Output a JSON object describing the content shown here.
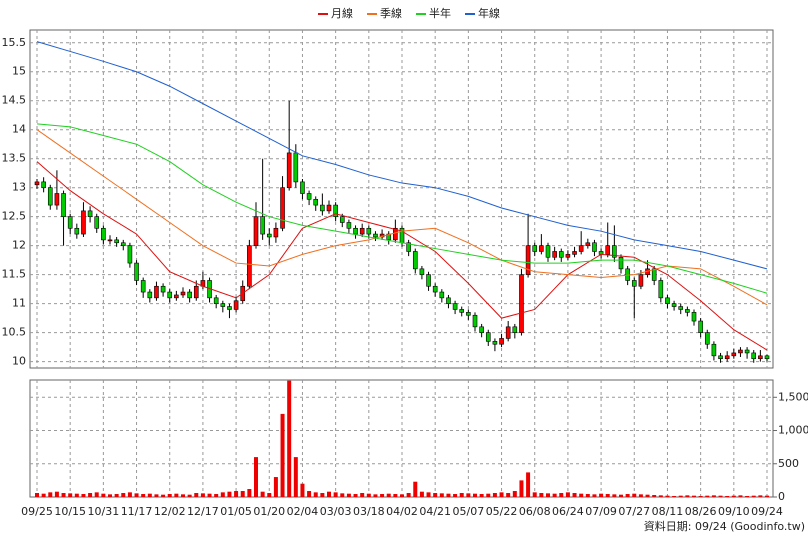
{
  "chart_data": {
    "type": "candlestick",
    "legend": "top",
    "grid": true,
    "footnote": "資料日期: 09/24 (Goodinfo.tw)",
    "up_color": "#ff0000",
    "down_color": "#00cc00",
    "categories": [
      "09/25",
      null,
      null,
      null,
      null,
      "10/15",
      null,
      null,
      null,
      null,
      "10/31",
      null,
      null,
      null,
      null,
      "11/17",
      null,
      null,
      null,
      null,
      "12/02",
      null,
      null,
      null,
      null,
      "12/17",
      null,
      null,
      null,
      null,
      "01/05",
      null,
      null,
      null,
      null,
      "01/20",
      null,
      null,
      null,
      null,
      "02/04",
      null,
      null,
      null,
      null,
      "03/03",
      null,
      null,
      null,
      null,
      "03/18",
      null,
      null,
      null,
      null,
      "04/02",
      null,
      null,
      null,
      null,
      "04/21",
      null,
      null,
      null,
      null,
      "05/07",
      null,
      null,
      null,
      null,
      "05/22",
      null,
      null,
      null,
      null,
      "06/08",
      null,
      null,
      null,
      null,
      "06/24",
      null,
      null,
      null,
      null,
      "07/09",
      null,
      null,
      null,
      null,
      "07/27",
      null,
      null,
      null,
      null,
      "08/11",
      null,
      null,
      null,
      null,
      "08/26",
      null,
      null,
      null,
      null,
      "09/10",
      null,
      null,
      null,
      null,
      "09/24"
    ],
    "open": [
      13.05,
      13.1,
      13.0,
      12.7,
      12.9,
      12.5,
      12.3,
      12.2,
      12.6,
      12.5,
      12.3,
      12.1,
      12.1,
      12.05,
      12.0,
      11.7,
      11.4,
      11.2,
      11.1,
      11.3,
      11.2,
      11.1,
      11.15,
      11.2,
      11.1,
      11.3,
      11.4,
      11.1,
      11.0,
      10.95,
      10.9,
      11.05,
      11.3,
      12.0,
      12.5,
      12.2,
      12.15,
      12.3,
      13.0,
      13.6,
      13.1,
      12.9,
      12.8,
      12.7,
      12.6,
      12.7,
      12.5,
      12.4,
      12.3,
      12.2,
      12.3,
      12.2,
      12.15,
      12.2,
      12.1,
      12.3,
      12.05,
      11.9,
      11.6,
      11.5,
      11.3,
      11.2,
      11.1,
      11.0,
      10.9,
      10.85,
      10.8,
      10.6,
      10.5,
      10.35,
      10.3,
      10.4,
      10.6,
      10.5,
      11.5,
      12.0,
      11.9,
      12.0,
      11.8,
      11.9,
      11.8,
      11.85,
      11.9,
      12.0,
      12.05,
      11.9,
      11.85,
      12.0,
      11.8,
      11.6,
      11.4,
      11.3,
      11.5,
      11.6,
      11.4,
      11.1,
      11.0,
      10.95,
      10.9,
      10.85,
      10.7,
      10.5,
      10.3,
      10.1,
      10.05,
      10.1,
      10.15,
      10.2,
      10.15,
      10.05,
      10.1
    ],
    "high": [
      13.15,
      13.18,
      13.05,
      13.3,
      12.95,
      12.55,
      12.38,
      12.75,
      12.68,
      12.55,
      12.35,
      12.18,
      12.15,
      12.1,
      12.05,
      11.75,
      11.45,
      11.25,
      11.38,
      11.35,
      11.25,
      11.22,
      11.28,
      11.25,
      11.4,
      11.55,
      11.45,
      11.15,
      11.05,
      11.0,
      11.12,
      11.4,
      12.1,
      12.75,
      13.5,
      12.3,
      12.4,
      13.2,
      14.5,
      13.75,
      13.15,
      12.95,
      12.85,
      12.9,
      12.78,
      12.75,
      12.55,
      12.45,
      12.35,
      12.38,
      12.35,
      12.25,
      12.28,
      12.25,
      12.45,
      12.35,
      12.1,
      11.95,
      11.65,
      11.55,
      11.35,
      11.25,
      11.15,
      11.05,
      10.95,
      10.9,
      10.85,
      10.65,
      10.55,
      10.4,
      10.48,
      10.7,
      10.65,
      11.6,
      12.55,
      12.05,
      12.2,
      12.05,
      11.98,
      11.95,
      11.92,
      11.98,
      12.25,
      12.12,
      12.1,
      11.95,
      12.4,
      12.35,
      11.85,
      11.65,
      11.45,
      11.58,
      11.75,
      11.65,
      11.45,
      11.15,
      11.05,
      11.0,
      10.95,
      10.9,
      10.75,
      10.55,
      10.35,
      10.15,
      10.18,
      10.22,
      10.25,
      10.25,
      10.2,
      10.2,
      10.12
    ],
    "low": [
      12.98,
      12.92,
      12.62,
      12.62,
      12.0,
      12.2,
      12.12,
      12.15,
      12.4,
      12.22,
      12.02,
      12.02,
      11.98,
      11.92,
      11.62,
      11.32,
      11.1,
      11.02,
      11.05,
      11.12,
      11.02,
      11.05,
      11.1,
      11.02,
      11.05,
      11.25,
      11.02,
      10.92,
      10.85,
      10.75,
      10.85,
      11.0,
      11.25,
      11.95,
      12.1,
      12.0,
      12.05,
      12.25,
      12.95,
      13.0,
      12.8,
      12.7,
      12.6,
      12.52,
      12.55,
      12.42,
      12.32,
      12.22,
      12.12,
      12.15,
      12.12,
      12.08,
      12.1,
      12.02,
      12.05,
      11.98,
      11.82,
      11.52,
      11.42,
      11.22,
      11.12,
      11.02,
      10.92,
      10.82,
      10.78,
      10.72,
      10.52,
      10.42,
      10.27,
      10.18,
      10.25,
      10.35,
      10.4,
      10.45,
      11.45,
      11.82,
      11.85,
      11.72,
      11.75,
      11.72,
      11.75,
      11.8,
      11.85,
      11.95,
      11.82,
      11.78,
      11.8,
      11.72,
      11.52,
      11.32,
      10.75,
      11.25,
      11.45,
      11.32,
      11.02,
      10.92,
      10.88,
      10.82,
      10.78,
      10.62,
      10.42,
      10.22,
      10.02,
      9.98,
      10.0,
      10.05,
      10.08,
      10.05,
      9.98,
      10.0,
      10.0
    ],
    "close": [
      13.1,
      13.0,
      12.7,
      12.9,
      12.5,
      12.3,
      12.2,
      12.6,
      12.5,
      12.3,
      12.1,
      12.1,
      12.05,
      12.0,
      11.7,
      11.4,
      11.2,
      11.1,
      11.3,
      11.2,
      11.1,
      11.15,
      11.2,
      11.1,
      11.3,
      11.4,
      11.1,
      11.0,
      10.95,
      10.9,
      11.05,
      11.3,
      12.0,
      12.5,
      12.2,
      12.15,
      12.3,
      13.0,
      13.6,
      13.1,
      12.9,
      12.8,
      12.7,
      12.6,
      12.7,
      12.5,
      12.4,
      12.3,
      12.2,
      12.3,
      12.2,
      12.15,
      12.2,
      12.1,
      12.3,
      12.05,
      11.9,
      11.6,
      11.5,
      11.3,
      11.2,
      11.1,
      11.0,
      10.9,
      10.85,
      10.8,
      10.6,
      10.5,
      10.35,
      10.3,
      10.4,
      10.6,
      10.5,
      11.5,
      12.0,
      11.9,
      12.0,
      11.8,
      11.9,
      11.8,
      11.85,
      11.9,
      12.0,
      12.05,
      11.9,
      11.85,
      12.0,
      11.8,
      11.6,
      11.4,
      11.3,
      11.5,
      11.6,
      11.4,
      11.1,
      11.0,
      10.95,
      10.9,
      10.85,
      10.7,
      10.5,
      10.3,
      10.1,
      10.05,
      10.1,
      10.15,
      10.2,
      10.15,
      10.05,
      10.1,
      10.05
    ],
    "ylim": [
      9.89,
      15.72
    ],
    "yticks": [
      10,
      10.5,
      11,
      11.5,
      12,
      12.5,
      13,
      13.5,
      14,
      14.5,
      15,
      15.5
    ],
    "series": [
      {
        "name": "月線",
        "color": "#e01010",
        "x": [
          0,
          5,
          10,
          15,
          20,
          25,
          30,
          35,
          40,
          45,
          50,
          55,
          60,
          65,
          70,
          75,
          80,
          85,
          90,
          95,
          100,
          105,
          110
        ],
        "values": [
          13.45,
          12.95,
          12.55,
          12.2,
          11.55,
          11.3,
          11.1,
          11.5,
          12.3,
          12.55,
          12.4,
          12.25,
          11.9,
          11.35,
          10.75,
          10.9,
          11.5,
          11.85,
          11.8,
          11.5,
          11.05,
          10.55,
          10.2
        ]
      },
      {
        "name": "季線",
        "color": "#f07020",
        "x": [
          0,
          5,
          10,
          15,
          20,
          25,
          30,
          35,
          40,
          45,
          50,
          55,
          60,
          65,
          70,
          75,
          80,
          85,
          90,
          95,
          100,
          105,
          110
        ],
        "values": [
          14.0,
          13.6,
          13.2,
          12.8,
          12.4,
          12.0,
          11.7,
          11.65,
          11.85,
          12.0,
          12.1,
          12.25,
          12.3,
          12.05,
          11.75,
          11.55,
          11.5,
          11.45,
          11.5,
          11.65,
          11.6,
          11.3,
          10.98
        ]
      },
      {
        "name": "半年",
        "color": "#20d020",
        "x": [
          0,
          5,
          10,
          15,
          20,
          25,
          30,
          35,
          40,
          45,
          50,
          55,
          60,
          65,
          70,
          75,
          80,
          85,
          90,
          95,
          100,
          105,
          110
        ],
        "values": [
          14.1,
          14.05,
          13.9,
          13.75,
          13.45,
          13.05,
          12.75,
          12.5,
          12.35,
          12.25,
          12.15,
          12.05,
          11.95,
          11.85,
          11.75,
          11.7,
          11.7,
          11.75,
          11.75,
          11.65,
          11.5,
          11.35,
          11.18
        ]
      },
      {
        "name": "年線",
        "color": "#2060d0",
        "x": [
          0,
          5,
          10,
          15,
          20,
          25,
          30,
          35,
          40,
          45,
          50,
          55,
          60,
          65,
          70,
          75,
          80,
          85,
          90,
          95,
          100,
          105,
          110
        ],
        "values": [
          15.52,
          15.35,
          15.18,
          15.0,
          14.75,
          14.45,
          14.15,
          13.85,
          13.55,
          13.4,
          13.22,
          13.08,
          13.0,
          12.85,
          12.65,
          12.5,
          12.35,
          12.25,
          12.1,
          12.0,
          11.9,
          11.75,
          11.6
        ]
      }
    ],
    "volume": {
      "color": "#ee0000",
      "values": [
        60,
        50,
        70,
        80,
        60,
        55,
        50,
        45,
        60,
        70,
        50,
        40,
        45,
        60,
        70,
        55,
        45,
        50,
        40,
        35,
        45,
        50,
        40,
        35,
        60,
        55,
        50,
        45,
        70,
        80,
        90,
        90,
        120,
        600,
        80,
        60,
        300,
        1250,
        1750,
        600,
        200,
        90,
        70,
        60,
        80,
        70,
        55,
        50,
        45,
        60,
        50,
        40,
        45,
        50,
        45,
        40,
        60,
        230,
        80,
        70,
        60,
        55,
        50,
        45,
        60,
        55,
        50,
        45,
        50,
        60,
        70,
        60,
        90,
        250,
        370,
        70,
        60,
        55,
        50,
        60,
        70,
        60,
        50,
        45,
        40,
        50,
        45,
        40,
        35,
        45,
        50,
        40,
        35,
        30,
        25,
        20,
        15,
        20,
        25,
        20,
        15,
        20,
        25,
        20,
        15,
        20,
        25,
        15,
        20,
        25,
        20
      ],
      "ylim": [
        0,
        1760
      ],
      "yticks": [
        0,
        500,
        {
          "value": 1000,
          "label": "1,000"
        },
        {
          "value": 1500,
          "label": "1,500"
        }
      ]
    }
  }
}
